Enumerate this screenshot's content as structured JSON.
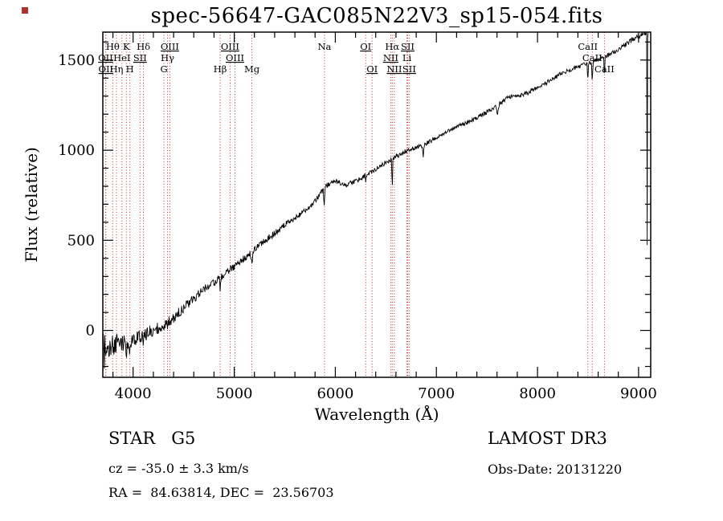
{
  "annotations": {
    "object_class": "STAR   G5",
    "survey": "LAMOST DR3",
    "velocity": "cz = -35.0 ± 3.3 km/s",
    "obs_date": "Obs-Date: 20131220",
    "coordinates": "RA =  84.63814, DEC =  23.56703"
  },
  "colors": {
    "spectrum": "#000000",
    "frame": "#000000",
    "line_marker": "#bb3333",
    "corner_marker": "#b03030"
  },
  "chart_data": {
    "type": "line",
    "title": "spec-56647-GAC085N22V3_sp15-054.fits",
    "xlabel": "Wavelength (Å)",
    "ylabel": "Flux (relative)",
    "xlim": [
      3700,
      9120
    ],
    "ylim": [
      -260,
      1655
    ],
    "x_ticks": [
      4000,
      5000,
      6000,
      7000,
      8000,
      9000
    ],
    "y_ticks": [
      0,
      500,
      1000,
      1500
    ],
    "x_minor_step": 200,
    "y_minor_step": 100,
    "sample_step": 5,
    "grid": false,
    "legend": false,
    "series": [
      {
        "name": "spectrum",
        "anchor_wavelengths": [
          3700,
          3760,
          3820,
          3880,
          3940,
          4000,
          4060,
          4120,
          4180,
          4240,
          4300,
          4360,
          4420,
          4480,
          4540,
          4600,
          4660,
          4720,
          4780,
          4840,
          4900,
          4960,
          5020,
          5080,
          5140,
          5200,
          5260,
          5320,
          5380,
          5440,
          5500,
          5560,
          5620,
          5680,
          5740,
          5800,
          5860,
          5920,
          5980,
          6040,
          6100,
          6160,
          6220,
          6280,
          6340,
          6400,
          6460,
          6520,
          6580,
          6640,
          6700,
          6760,
          6820,
          6880,
          6940,
          7000,
          7060,
          7120,
          7180,
          7240,
          7300,
          7360,
          7420,
          7480,
          7540,
          7600,
          7660,
          7720,
          7780,
          7840,
          7900,
          7960,
          8020,
          8080,
          8140,
          8200,
          8260,
          8320,
          8380,
          8440,
          8500,
          8560,
          8620,
          8680,
          8740,
          8800,
          8860,
          8920,
          8980,
          9040,
          9120
        ],
        "anchor_flux": [
          -70,
          -95,
          -75,
          -65,
          -60,
          -45,
          -30,
          -20,
          -5,
          15,
          30,
          50,
          80,
          115,
          145,
          175,
          210,
          235,
          260,
          280,
          310,
          340,
          360,
          395,
          415,
          450,
          480,
          505,
          530,
          555,
          585,
          610,
          630,
          655,
          680,
          720,
          765,
          805,
          828,
          820,
          805,
          818,
          832,
          855,
          872,
          893,
          918,
          940,
          958,
          975,
          995,
          1008,
          1018,
          1032,
          1050,
          1072,
          1090,
          1108,
          1122,
          1138,
          1152,
          1168,
          1185,
          1205,
          1225,
          1245,
          1272,
          1295,
          1305,
          1303,
          1318,
          1338,
          1355,
          1372,
          1392,
          1412,
          1432,
          1445,
          1458,
          1470,
          1480,
          1492,
          1508,
          1522,
          1538,
          1558,
          1582,
          1605,
          1625,
          1642,
          1660
        ]
      }
    ],
    "absorption_dips": [
      {
        "center": 3715,
        "depth": 150,
        "width": 3
      },
      {
        "center": 3737,
        "depth": 120,
        "width": 3
      },
      {
        "center": 3762,
        "depth": 100,
        "width": 2.5
      },
      {
        "center": 3788,
        "depth": 85,
        "width": 2.5
      },
      {
        "center": 3812,
        "depth": 70,
        "width": 2.5
      },
      {
        "center": 3934,
        "depth": 70,
        "width": 5
      },
      {
        "center": 3968,
        "depth": 60,
        "width": 5
      },
      {
        "center": 4102,
        "depth": 50,
        "width": 5
      },
      {
        "center": 4340,
        "depth": 55,
        "width": 5
      },
      {
        "center": 4861,
        "depth": 65,
        "width": 5
      },
      {
        "center": 5175,
        "depth": 55,
        "width": 9
      },
      {
        "center": 5890,
        "depth": 85,
        "width": 6
      },
      {
        "center": 6300,
        "depth": 45,
        "width": 3
      },
      {
        "center": 6563,
        "depth": 160,
        "width": 5
      },
      {
        "center": 6870,
        "depth": 70,
        "width": 6
      },
      {
        "center": 7605,
        "depth": 45,
        "width": 9
      },
      {
        "center": 8498,
        "depth": 90,
        "width": 5
      },
      {
        "center": 8542,
        "depth": 120,
        "width": 5
      },
      {
        "center": 8662,
        "depth": 110,
        "width": 5
      },
      {
        "center": 9085,
        "depth": 1180,
        "width": 2.5
      }
    ],
    "noise": {
      "wavelengths": [
        3700,
        3900,
        4200,
        4600,
        5000,
        5500,
        6000,
        6500,
        7000,
        7600,
        8200,
        9120
      ],
      "amplitudes": [
        65,
        50,
        35,
        25,
        20,
        17,
        14,
        13,
        12,
        12,
        13,
        13
      ],
      "seed": 20131220
    },
    "spectral_lines": [
      {
        "label": "OII",
        "wavelength": 3727,
        "row": 2,
        "underline": true
      },
      {
        "label": "OII",
        "wavelength": 3730,
        "row": 3,
        "underline": true
      },
      {
        "label": "Hθ",
        "wavelength": 3798,
        "row": 1,
        "underline": false
      },
      {
        "label": "Hη",
        "wavelength": 3835,
        "row": 3,
        "underline": false
      },
      {
        "label": "HeI",
        "wavelength": 3889,
        "row": 2,
        "underline": false
      },
      {
        "label": "K",
        "wavelength": 3933,
        "row": 1,
        "underline": false
      },
      {
        "label": "H",
        "wavelength": 3968,
        "row": 3,
        "underline": false
      },
      {
        "label": "SII",
        "wavelength": 4068,
        "row": 2,
        "underline": true
      },
      {
        "label": "Hδ",
        "wavelength": 4102,
        "row": 1,
        "underline": false
      },
      {
        "label": "G",
        "wavelength": 4305,
        "row": 3,
        "underline": false
      },
      {
        "label": "Hγ",
        "wavelength": 4340,
        "row": 2,
        "underline": false
      },
      {
        "label": "OIII",
        "wavelength": 4363,
        "row": 1,
        "underline": true
      },
      {
        "label": "Hβ",
        "wavelength": 4861,
        "row": 3,
        "underline": false
      },
      {
        "label": "OIII",
        "wavelength": 4959,
        "row": 1,
        "underline": true
      },
      {
        "label": "OIII",
        "wavelength": 5007,
        "row": 2,
        "underline": true
      },
      {
        "label": "Mg",
        "wavelength": 5175,
        "row": 3,
        "underline": false
      },
      {
        "label": "Na",
        "wavelength": 5893,
        "row": 1,
        "underline": false
      },
      {
        "label": "OI",
        "wavelength": 6300,
        "row": 1,
        "underline": true
      },
      {
        "label": "OI",
        "wavelength": 6364,
        "row": 3,
        "underline": true
      },
      {
        "label": "NII",
        "wavelength": 6548,
        "row": 2,
        "underline": true
      },
      {
        "label": "Hα",
        "wavelength": 6563,
        "row": 1,
        "underline": false
      },
      {
        "label": "NII",
        "wavelength": 6584,
        "row": 3,
        "underline": true
      },
      {
        "label": "Li",
        "wavelength": 6708,
        "row": 2,
        "underline": false
      },
      {
        "label": "SII",
        "wavelength": 6716,
        "row": 1,
        "underline": true
      },
      {
        "label": "SII",
        "wavelength": 6731,
        "row": 3,
        "underline": true
      },
      {
        "label": "CaII",
        "wavelength": 8498,
        "row": 1,
        "underline": false
      },
      {
        "label": "CaII",
        "wavelength": 8542,
        "row": 2,
        "underline": false
      },
      {
        "label": "CaII",
        "wavelength": 8662,
        "row": 3,
        "underline": false
      }
    ]
  }
}
